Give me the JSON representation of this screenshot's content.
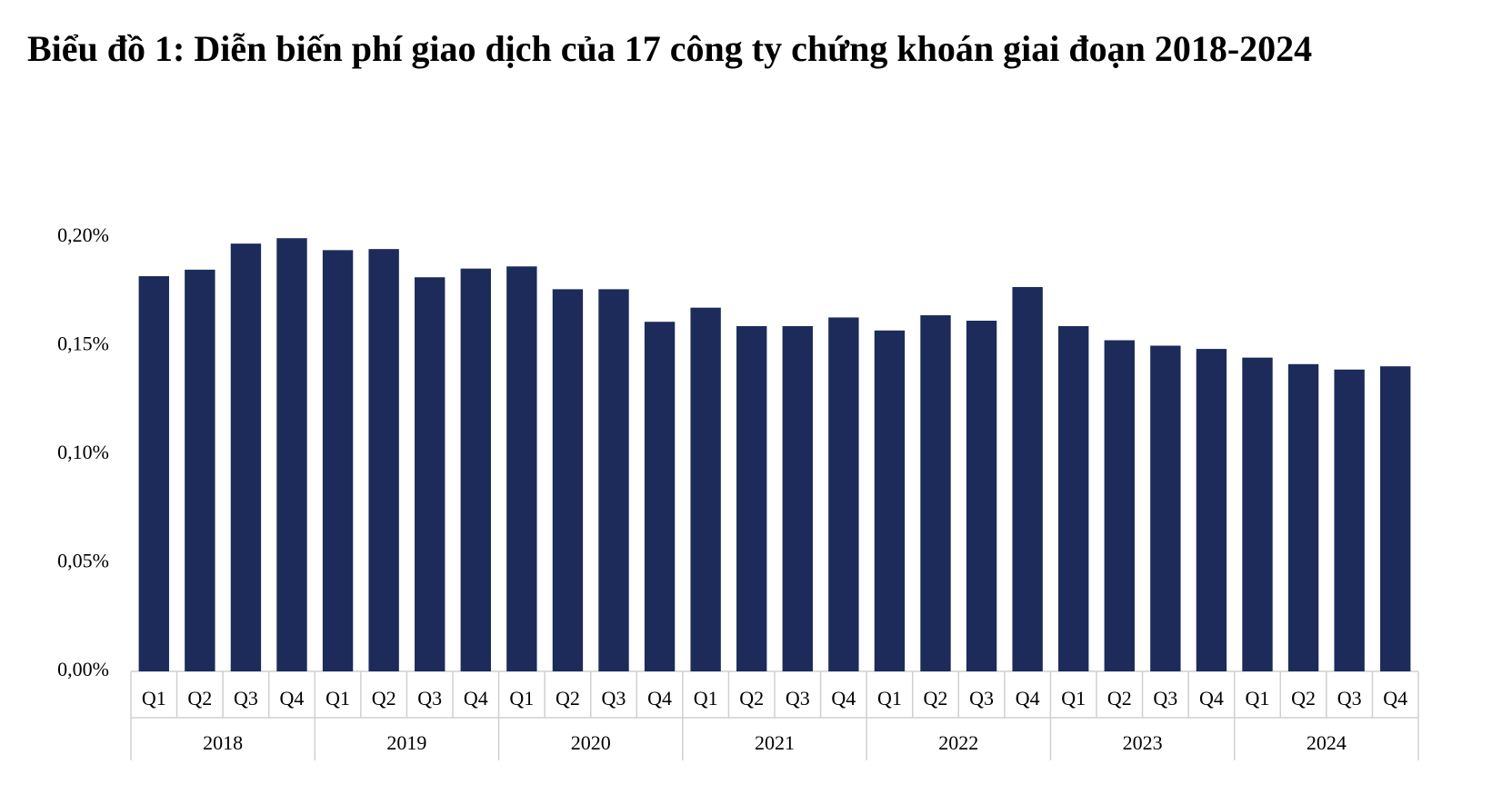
{
  "chart_data": {
    "type": "bar",
    "title": "Biểu đồ 1: Diễn biến phí giao dịch của 17 công ty chứng khoán giai đoạn 2018-2024",
    "categories": [
      "Q1",
      "Q2",
      "Q3",
      "Q4",
      "Q1",
      "Q2",
      "Q3",
      "Q4",
      "Q1",
      "Q2",
      "Q3",
      "Q4",
      "Q1",
      "Q2",
      "Q3",
      "Q4",
      "Q1",
      "Q2",
      "Q3",
      "Q4",
      "Q1",
      "Q2",
      "Q3",
      "Q4",
      "Q1",
      "Q2",
      "Q3",
      "Q4"
    ],
    "category_groups": [
      "2018",
      "2019",
      "2020",
      "2021",
      "2022",
      "2023",
      "2024"
    ],
    "values": [
      0.182,
      0.185,
      0.197,
      0.1995,
      0.194,
      0.1945,
      0.1815,
      0.1855,
      0.1865,
      0.176,
      0.176,
      0.161,
      0.1675,
      0.159,
      0.159,
      0.163,
      0.157,
      0.164,
      0.1615,
      0.177,
      0.159,
      0.1525,
      0.15,
      0.1485,
      0.1445,
      0.1415,
      0.139,
      0.1405
    ],
    "color": "#1c2b5a",
    "ylim": [
      0,
      0.2
    ],
    "yticks": [
      {
        "value": 0,
        "label": "0,00%"
      },
      {
        "value": 0.05,
        "label": "0,05%"
      },
      {
        "value": 0.1,
        "label": "0,10%"
      },
      {
        "value": 0.15,
        "label": "0,15%"
      },
      {
        "value": 0.2,
        "label": "0,20%"
      }
    ],
    "grid": false
  }
}
